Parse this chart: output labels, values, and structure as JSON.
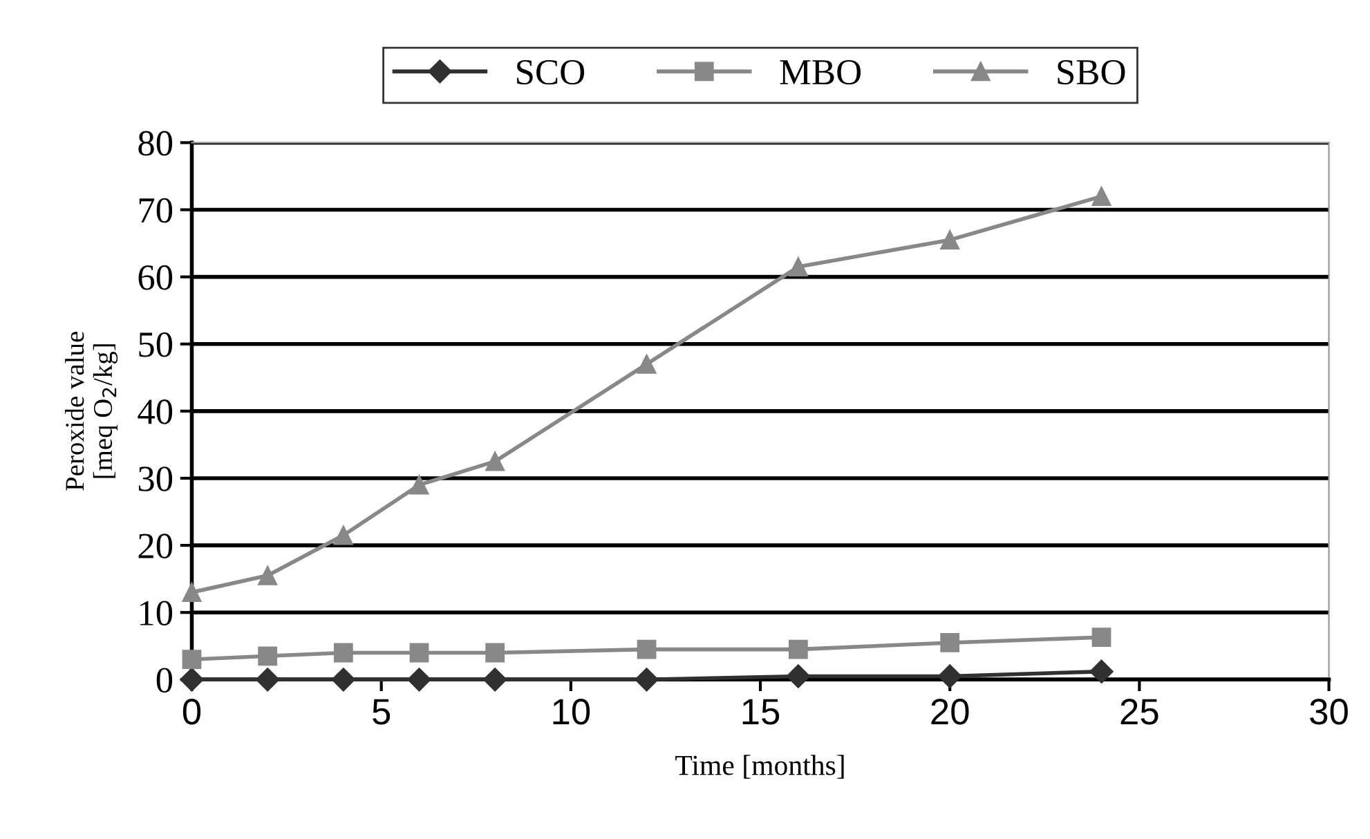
{
  "chart_data": {
    "type": "line",
    "xlabel": "Time [months]",
    "ylabel": "Peroxide value\n[meq O$_{2}$/kg]",
    "x": [
      0,
      2,
      4,
      6,
      8,
      12,
      16,
      20,
      24
    ],
    "series": [
      {
        "name": "SCO",
        "color": "#303030",
        "marker": "diamond",
        "values": [
          0,
          0,
          0,
          0,
          0,
          0,
          0.5,
          0.5,
          1.2
        ]
      },
      {
        "name": "MBO",
        "color": "#888888",
        "marker": "square",
        "values": [
          3,
          3.5,
          4,
          4,
          4,
          4.5,
          4.5,
          5.5,
          6.3
        ]
      },
      {
        "name": "SBO",
        "color": "#888888",
        "marker": "triangle",
        "values": [
          13,
          15.5,
          21.5,
          29,
          32.5,
          47,
          61.5,
          65.5,
          72
        ]
      }
    ],
    "xlim": [
      0,
      30
    ],
    "xticks": [
      0,
      5,
      10,
      15,
      20,
      25,
      30
    ],
    "ylim": [
      0,
      80
    ],
    "yticks": [
      0,
      10,
      20,
      30,
      40,
      50,
      60,
      70,
      80
    ],
    "grid": "y",
    "legend": "top",
    "line_style": "solid"
  }
}
